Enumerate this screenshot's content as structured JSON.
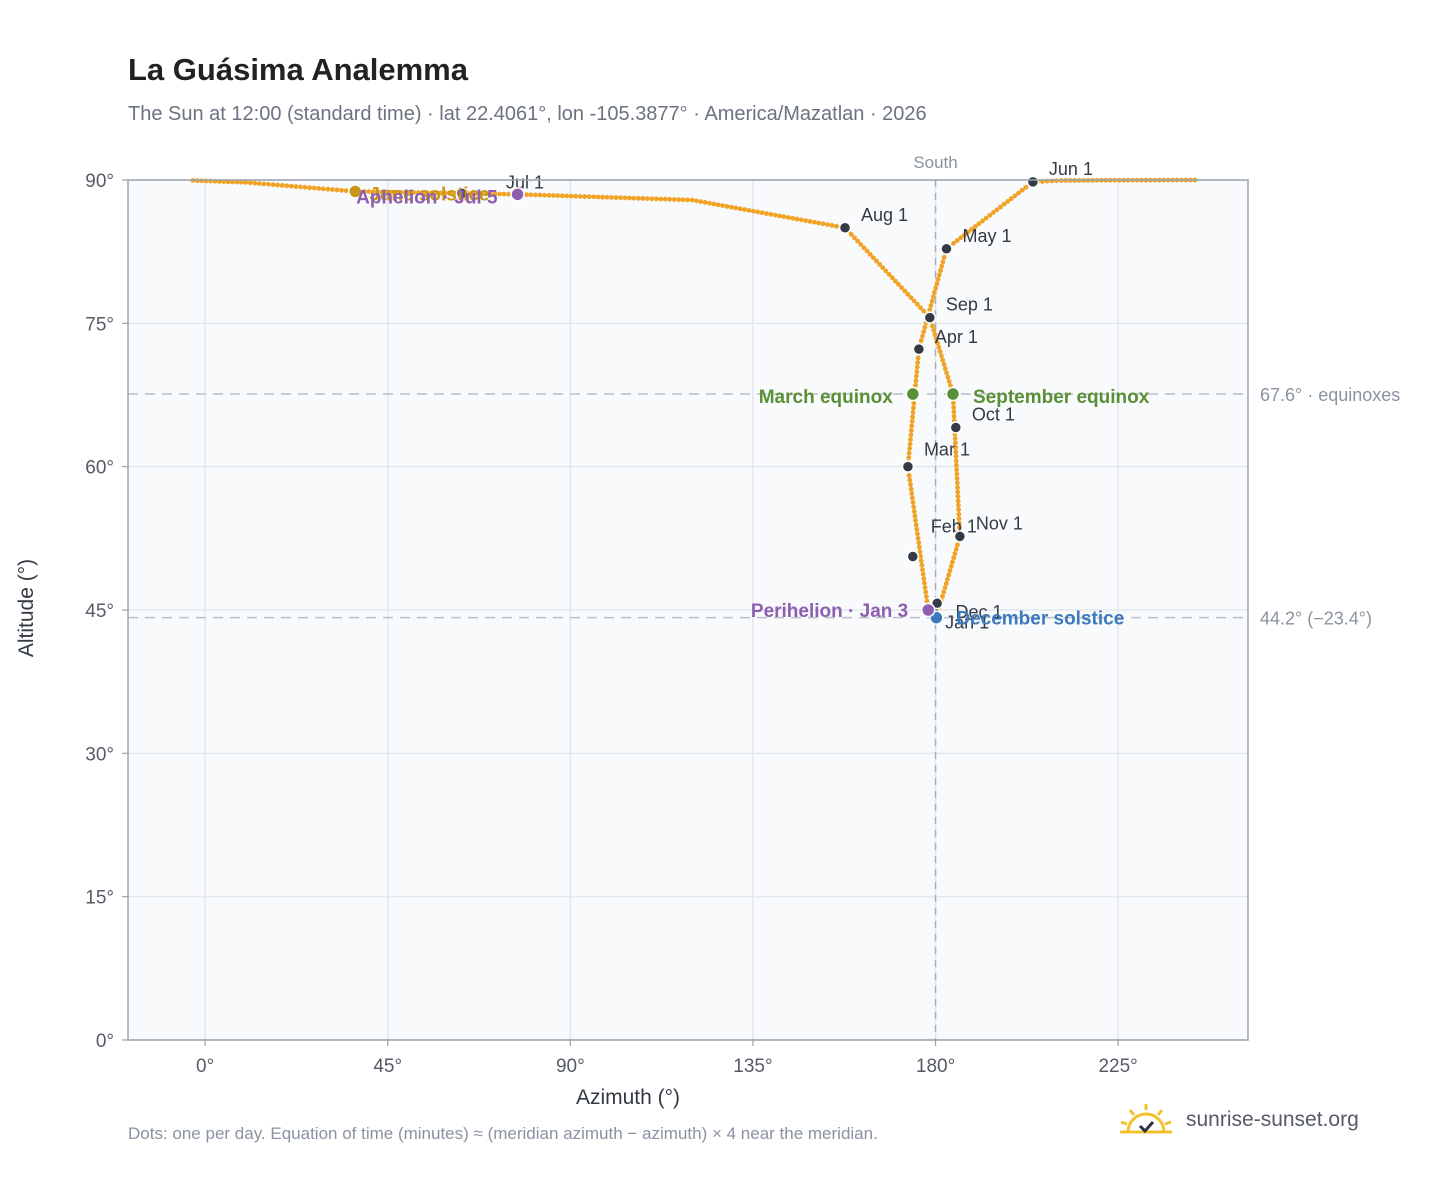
{
  "title": "La Guásima Analemma",
  "subtitle": "The Sun at 12:00 (standard time) · lat 22.4061°, lon -105.3877° · America/Mazatlan · 2026",
  "footnote": "Dots: one per day. Equation of time (minutes) ≈ (meridian azimuth − azimuth) × 4 near the meridian.",
  "brand": {
    "text": "sunrise-sunset.org",
    "logo_icon": "sun-logo-icon"
  },
  "colors": {
    "curve": "#f0a324",
    "month": "#343a46",
    "equinox": "#5a8f35",
    "solstice_dec": "#3a7abd",
    "solstice_jun": "#c9961a",
    "apsis": "#8e5fb0",
    "axis": "#9aa3ae",
    "plot_bg": "#f8fafc",
    "grid": "#e3e8ee"
  },
  "chart_data": {
    "type": "scatter",
    "title": "La Guásima Analemma",
    "xlabel": "Azimuth (°)",
    "ylabel": "Altitude (°)",
    "xlim": [
      -19,
      257
    ],
    "ylim": [
      0,
      90
    ],
    "xticks": [
      0,
      45,
      90,
      135,
      180,
      225
    ],
    "xtick_labels": [
      "0°",
      "45°",
      "90°",
      "135°",
      "180°",
      "225°"
    ],
    "yticks": [
      0,
      15,
      30,
      45,
      60,
      75,
      90
    ],
    "ytick_labels": [
      "0°",
      "15°",
      "30°",
      "45°",
      "60°",
      "75°",
      "90°"
    ],
    "grid": true,
    "south_line": {
      "azimuth": 180,
      "label": "South"
    },
    "reference_lines": [
      {
        "altitude": 67.6,
        "label": "67.6° · equinoxes"
      },
      {
        "altitude": 44.2,
        "label": "44.2° (−23.4°)"
      }
    ],
    "month_points": [
      {
        "label": "Jan 1",
        "az": 180.4,
        "alt": 45.7
      },
      {
        "label": "Feb 1",
        "az": 174.4,
        "alt": 50.6
      },
      {
        "label": "Mar 1",
        "az": 173.2,
        "alt": 60.0
      },
      {
        "label": "Apr 1",
        "az": 175.9,
        "alt": 72.3
      },
      {
        "label": "May 1",
        "az": 182.7,
        "alt": 82.8
      },
      {
        "label": "Jun 1",
        "az": 204.0,
        "alt": 89.8
      },
      {
        "label": "Jul 1",
        "az": 63.3,
        "alt": 88.6
      },
      {
        "label": "Aug 1",
        "az": 157.7,
        "alt": 85.0
      },
      {
        "label": "Sep 1",
        "az": 178.6,
        "alt": 75.6
      },
      {
        "label": "Oct 1",
        "az": 185.0,
        "alt": 64.1
      },
      {
        "label": "Nov 1",
        "az": 186.0,
        "alt": 52.7
      },
      {
        "label": "Dec 1",
        "az": 180.0,
        "alt": 44.6
      }
    ],
    "events": [
      {
        "label": "March equinox",
        "az": 174.4,
        "alt": 67.6
      },
      {
        "label": "September equinox",
        "az": 184.3,
        "alt": 67.6
      },
      {
        "label": "June solstice",
        "az": 37.0,
        "alt": 88.8
      },
      {
        "label": "December solstice",
        "az": 180.2,
        "alt": 44.2
      },
      {
        "label": "Perihelion · Jan 3",
        "az": 178.2,
        "alt": 45.0
      },
      {
        "label": "Aphelion · Jul 5",
        "az": 77.0,
        "alt": 88.5
      }
    ],
    "curve_segments": [
      {
        "from": [
          -3.0,
          89.95
        ],
        "to": [
          10.0,
          89.75
        ]
      },
      {
        "from": [
          10.0,
          89.75
        ],
        "to": [
          37.0,
          88.8
        ]
      },
      {
        "from": [
          37.0,
          88.8
        ],
        "to": [
          77.0,
          88.5
        ]
      },
      {
        "from": [
          77.0,
          88.5
        ],
        "to": [
          120.0,
          87.9
        ]
      },
      {
        "from": [
          120.0,
          87.9
        ],
        "to": [
          157.7,
          85.0
        ]
      },
      {
        "from": [
          157.7,
          85.0
        ],
        "to": [
          178.6,
          75.6
        ]
      },
      {
        "from": [
          178.6,
          75.6
        ],
        "to": [
          184.3,
          67.6
        ]
      },
      {
        "from": [
          184.3,
          67.6
        ],
        "to": [
          186.0,
          52.7
        ]
      },
      {
        "from": [
          186.0,
          52.7
        ],
        "to": [
          180.2,
          44.2
        ]
      },
      {
        "from": [
          180.2,
          44.2
        ],
        "to": [
          178.2,
          45.0
        ]
      },
      {
        "from": [
          178.2,
          45.0
        ],
        "to": [
          173.2,
          60.0
        ]
      },
      {
        "from": [
          173.2,
          60.0
        ],
        "to": [
          175.9,
          72.3
        ]
      },
      {
        "from": [
          175.9,
          72.3
        ],
        "to": [
          182.7,
          82.8
        ]
      },
      {
        "from": [
          182.7,
          82.8
        ],
        "to": [
          204.0,
          89.8
        ]
      },
      {
        "from": [
          204.0,
          89.8
        ],
        "to": [
          211.0,
          89.95
        ]
      },
      {
        "from": [
          211.0,
          89.95
        ],
        "to": [
          245.0,
          90.0
        ]
      }
    ]
  }
}
